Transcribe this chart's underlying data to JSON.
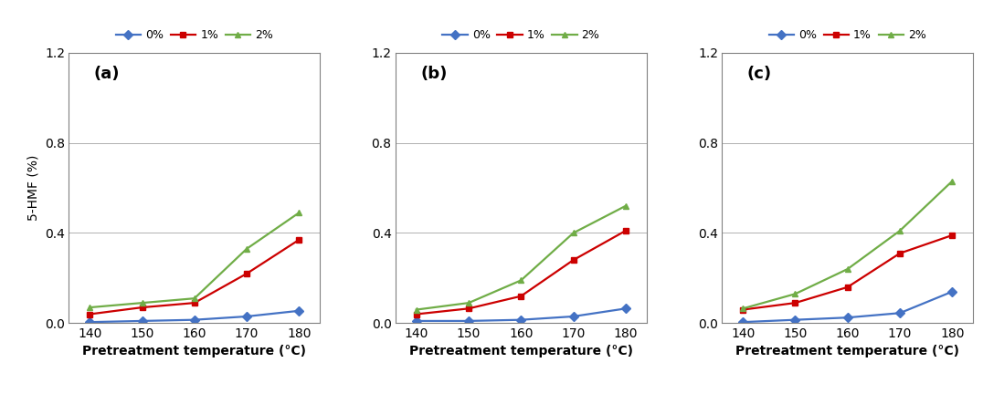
{
  "x": [
    140,
    150,
    160,
    170,
    180
  ],
  "panels": [
    {
      "label": "(a)",
      "series": {
        "0%": [
          0.005,
          0.01,
          0.015,
          0.03,
          0.055
        ],
        "1%": [
          0.04,
          0.07,
          0.09,
          0.22,
          0.37
        ],
        "2%": [
          0.07,
          0.09,
          0.11,
          0.33,
          0.49
        ]
      }
    },
    {
      "label": "(b)",
      "series": {
        "0%": [
          0.01,
          0.01,
          0.015,
          0.03,
          0.065
        ],
        "1%": [
          0.04,
          0.065,
          0.12,
          0.28,
          0.41
        ],
        "2%": [
          0.06,
          0.09,
          0.19,
          0.4,
          0.52
        ]
      }
    },
    {
      "label": "(c)",
      "series": {
        "0%": [
          0.005,
          0.015,
          0.025,
          0.045,
          0.14
        ],
        "1%": [
          0.06,
          0.09,
          0.16,
          0.31,
          0.39
        ],
        "2%": [
          0.065,
          0.13,
          0.24,
          0.41,
          0.63
        ]
      }
    }
  ],
  "colors": {
    "0%": "#4472C4",
    "1%": "#CC0000",
    "2%": "#70AD47"
  },
  "markers": {
    "0%": "D",
    "1%": "s",
    "2%": "^"
  },
  "legend_labels": [
    "0%",
    "1%",
    "2%"
  ],
  "ylabel": "5-HMF (%)",
  "xlabel": "Pretreatment temperature (°C)",
  "ylim": [
    0.0,
    1.2
  ],
  "yticks": [
    0.0,
    0.4,
    0.8,
    1.2
  ],
  "ytick_labels": [
    "0.0",
    "0.4",
    "0.8",
    "1.2"
  ],
  "background_color": "#ffffff",
  "grid_color": "#b0b0b0",
  "legend_fontsize": 9,
  "label_fontsize": 10,
  "tick_fontsize": 10,
  "panel_label_fontsize": 13,
  "markersize": 5,
  "linewidth": 1.6
}
